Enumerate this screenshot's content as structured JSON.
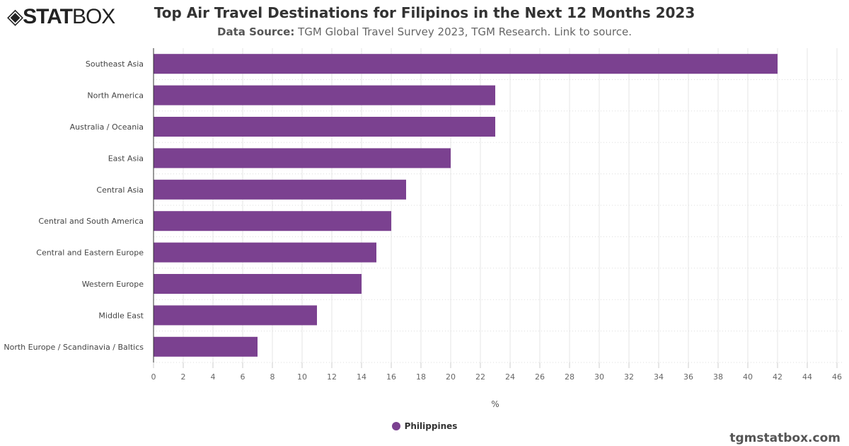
{
  "header": {
    "logo_text": "STATBOX",
    "title": "Top Air Travel Destinations for Filipinos in the Next 12 Months 2023",
    "source_label": "Data Source:",
    "source_text": "TGM Global Travel Survey 2023, TGM Research. Link to source."
  },
  "footer": {
    "site": "tgmstatbox.com"
  },
  "colors": {
    "bar": "#7b4190"
  },
  "chart_data": {
    "type": "bar",
    "orientation": "horizontal",
    "categories": [
      "Southeast Asia",
      "North America",
      "Australia / Oceania",
      "East Asia",
      "Central Asia",
      "Central and South America",
      "Central and Eastern Europe",
      "Western Europe",
      "Middle East",
      "North Europe / Scandinavia / Baltics"
    ],
    "series": [
      {
        "name": "Philippines",
        "values": [
          42,
          23,
          23,
          20,
          17,
          16,
          15,
          14,
          11,
          7
        ]
      }
    ],
    "xlabel": "%",
    "xlim": [
      0,
      46
    ],
    "xticks": [
      0,
      2,
      4,
      6,
      8,
      10,
      12,
      14,
      16,
      18,
      20,
      22,
      24,
      26,
      28,
      30,
      32,
      34,
      36,
      38,
      40,
      42,
      44,
      46
    ],
    "grid": true,
    "legend": "bottom"
  }
}
